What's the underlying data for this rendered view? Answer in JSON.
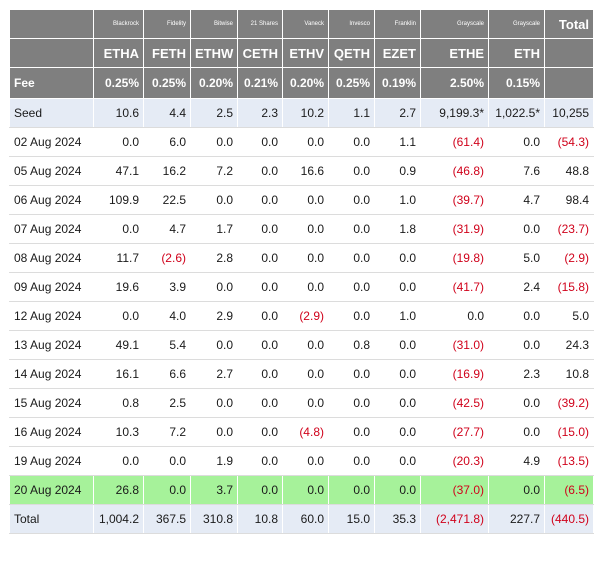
{
  "header": {
    "issuers": [
      "Blackrock",
      "Fidelity",
      "Bitwise",
      "21 Shares",
      "Vaneck",
      "Invesco",
      "Franklin",
      "Grayscale",
      "Grayscale"
    ],
    "total_label": "Total",
    "tickers": [
      "ETHA",
      "FETH",
      "ETHW",
      "CETH",
      "ETHV",
      "QETH",
      "EZET",
      "ETHE",
      "ETH"
    ],
    "fee_label": "Fee",
    "fees": [
      "0.25%",
      "0.25%",
      "0.20%",
      "0.21%",
      "0.20%",
      "0.25%",
      "0.19%",
      "2.50%",
      "0.15%"
    ]
  },
  "rows": [
    {
      "label": "Seed",
      "values": [
        "10.6",
        "4.4",
        "2.5",
        "2.3",
        "10.2",
        "1.1",
        "2.7",
        "9,199.3*",
        "1,022.5*"
      ],
      "total": "10,255",
      "style": "seed"
    },
    {
      "label": "02 Aug 2024",
      "values": [
        "0.0",
        "6.0",
        "0.0",
        "0.0",
        "0.0",
        "0.0",
        "1.1",
        "(61.4)",
        "0.0"
      ],
      "total": "(54.3)",
      "style": "row"
    },
    {
      "label": "05 Aug 2024",
      "values": [
        "47.1",
        "16.2",
        "7.2",
        "0.0",
        "16.6",
        "0.0",
        "0.9",
        "(46.8)",
        "7.6"
      ],
      "total": "48.8",
      "style": "row"
    },
    {
      "label": "06 Aug 2024",
      "values": [
        "109.9",
        "22.5",
        "0.0",
        "0.0",
        "0.0",
        "0.0",
        "1.0",
        "(39.7)",
        "4.7"
      ],
      "total": "98.4",
      "style": "row"
    },
    {
      "label": "07 Aug 2024",
      "values": [
        "0.0",
        "4.7",
        "1.7",
        "0.0",
        "0.0",
        "0.0",
        "1.8",
        "(31.9)",
        "0.0"
      ],
      "total": "(23.7)",
      "style": "row"
    },
    {
      "label": "08 Aug 2024",
      "values": [
        "11.7",
        "(2.6)",
        "2.8",
        "0.0",
        "0.0",
        "0.0",
        "0.0",
        "(19.8)",
        "5.0"
      ],
      "total": "(2.9)",
      "style": "row"
    },
    {
      "label": "09 Aug 2024",
      "values": [
        "19.6",
        "3.9",
        "0.0",
        "0.0",
        "0.0",
        "0.0",
        "0.0",
        "(41.7)",
        "2.4"
      ],
      "total": "(15.8)",
      "style": "row"
    },
    {
      "label": "12 Aug 2024",
      "values": [
        "0.0",
        "4.0",
        "2.9",
        "0.0",
        "(2.9)",
        "0.0",
        "1.0",
        "0.0",
        "0.0"
      ],
      "total": "5.0",
      "style": "row"
    },
    {
      "label": "13 Aug 2024",
      "values": [
        "49.1",
        "5.4",
        "0.0",
        "0.0",
        "0.0",
        "0.8",
        "0.0",
        "(31.0)",
        "0.0"
      ],
      "total": "24.3",
      "style": "row"
    },
    {
      "label": "14 Aug 2024",
      "values": [
        "16.1",
        "6.6",
        "2.7",
        "0.0",
        "0.0",
        "0.0",
        "0.0",
        "(16.9)",
        "2.3"
      ],
      "total": "10.8",
      "style": "row"
    },
    {
      "label": "15 Aug 2024",
      "values": [
        "0.8",
        "2.5",
        "0.0",
        "0.0",
        "0.0",
        "0.0",
        "0.0",
        "(42.5)",
        "0.0"
      ],
      "total": "(39.2)",
      "style": "row"
    },
    {
      "label": "16 Aug 2024",
      "values": [
        "10.3",
        "7.2",
        "0.0",
        "0.0",
        "(4.8)",
        "0.0",
        "0.0",
        "(27.7)",
        "0.0"
      ],
      "total": "(15.0)",
      "style": "row"
    },
    {
      "label": "19 Aug 2024",
      "values": [
        "0.0",
        "0.0",
        "1.9",
        "0.0",
        "0.0",
        "0.0",
        "0.0",
        "(20.3)",
        "4.9"
      ],
      "total": "(13.5)",
      "style": "row"
    },
    {
      "label": "20 Aug 2024",
      "values": [
        "26.8",
        "0.0",
        "3.7",
        "0.0",
        "0.0",
        "0.0",
        "0.0",
        "(37.0)",
        "0.0"
      ],
      "total": "(6.5)",
      "style": "hl"
    },
    {
      "label": "Total",
      "values": [
        "1,004.2",
        "367.5",
        "310.8",
        "10.8",
        "60.0",
        "15.0",
        "35.3",
        "(2,471.8)",
        "227.7"
      ],
      "total": "(440.5)",
      "style": "total"
    }
  ],
  "colors": {
    "header_bg": "#7f7f7f",
    "seed_total_bg": "#e5ebf5",
    "highlight_bg": "#a6f29a",
    "negative": "#d0021b"
  }
}
